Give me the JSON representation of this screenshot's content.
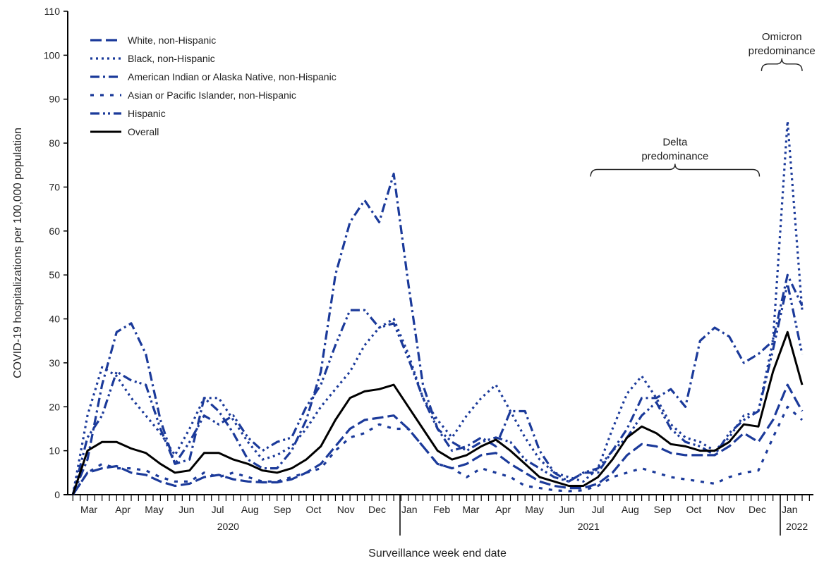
{
  "chart_data": {
    "type": "line",
    "title": "",
    "xlabel": "Surveillance week end date",
    "ylabel": "COVID-19 hospitalizations per 100,000 population",
    "ylim": [
      0,
      110
    ],
    "yticks": [
      0,
      10,
      20,
      30,
      40,
      50,
      60,
      70,
      80,
      90,
      100,
      110
    ],
    "grid": false,
    "legend_position": "top-left",
    "month_labels": [
      {
        "label": "Mar",
        "date": "2020-03"
      },
      {
        "label": "Apr",
        "date": "2020-04"
      },
      {
        "label": "May",
        "date": "2020-05"
      },
      {
        "label": "Jun",
        "date": "2020-06"
      },
      {
        "label": "Jul",
        "date": "2020-07"
      },
      {
        "label": "Aug",
        "date": "2020-08"
      },
      {
        "label": "Sep",
        "date": "2020-09"
      },
      {
        "label": "Oct",
        "date": "2020-10"
      },
      {
        "label": "Nov",
        "date": "2020-11"
      },
      {
        "label": "Dec",
        "date": "2020-12"
      },
      {
        "label": "Jan",
        "date": "2021-01"
      },
      {
        "label": "Feb",
        "date": "2021-02"
      },
      {
        "label": "Mar",
        "date": "2021-03"
      },
      {
        "label": "Apr",
        "date": "2021-04"
      },
      {
        "label": "May",
        "date": "2021-05"
      },
      {
        "label": "Jun",
        "date": "2021-06"
      },
      {
        "label": "Jul",
        "date": "2021-07"
      },
      {
        "label": "Aug",
        "date": "2021-08"
      },
      {
        "label": "Sep",
        "date": "2021-09"
      },
      {
        "label": "Oct",
        "date": "2021-10"
      },
      {
        "label": "Nov",
        "date": "2021-11"
      },
      {
        "label": "Dec",
        "date": "2021-12"
      },
      {
        "label": "Jan",
        "date": "2022-01"
      }
    ],
    "year_labels": [
      {
        "label": "2020",
        "date": "2020-07-20"
      },
      {
        "label": "2021",
        "date": "2021-07-01"
      },
      {
        "label": "2022",
        "date": "2022-01-17"
      }
    ],
    "annotations": [
      {
        "label_lines": [
          "Delta",
          "predominance"
        ],
        "start": "2021-07-03",
        "end": "2021-12-12",
        "level": 74
      },
      {
        "label_lines": [
          "Omicron",
          "predominance"
        ],
        "start": "2021-12-14",
        "end": "2022-01-22",
        "level": 98
      }
    ],
    "x": [
      "2020-02-22",
      "2020-03-07",
      "2020-03-21",
      "2020-04-04",
      "2020-04-18",
      "2020-05-02",
      "2020-05-16",
      "2020-05-30",
      "2020-06-13",
      "2020-06-27",
      "2020-07-11",
      "2020-07-25",
      "2020-08-08",
      "2020-08-22",
      "2020-09-05",
      "2020-09-19",
      "2020-10-03",
      "2020-10-17",
      "2020-10-31",
      "2020-11-14",
      "2020-11-28",
      "2020-12-12",
      "2020-12-26",
      "2021-01-09",
      "2021-01-23",
      "2021-02-06",
      "2021-02-20",
      "2021-03-06",
      "2021-03-20",
      "2021-04-03",
      "2021-04-17",
      "2021-05-01",
      "2021-05-15",
      "2021-05-29",
      "2021-06-12",
      "2021-06-26",
      "2021-07-10",
      "2021-07-24",
      "2021-08-07",
      "2021-08-21",
      "2021-09-04",
      "2021-09-18",
      "2021-10-02",
      "2021-10-16",
      "2021-10-30",
      "2021-11-13",
      "2021-11-27",
      "2021-12-11",
      "2021-12-25",
      "2022-01-08",
      "2022-01-22"
    ],
    "series": [
      {
        "name": "White, non-Hispanic",
        "color": "#1b3a9a",
        "dash": "long-dash",
        "values": [
          0,
          5,
          6,
          6.5,
          5,
          4.5,
          3,
          2,
          2.5,
          4,
          4.5,
          3.5,
          3,
          2.8,
          2.8,
          3.5,
          5,
          7,
          11,
          15,
          17,
          17.5,
          18,
          15,
          11,
          7,
          6,
          7,
          9,
          9.5,
          7,
          5,
          3,
          2,
          1.5,
          1.5,
          2.5,
          5,
          9,
          11.5,
          11,
          9.5,
          9,
          9,
          9,
          11,
          14,
          12,
          17,
          25,
          19
        ]
      },
      {
        "name": "Black, non-Hispanic",
        "color": "#1b3a9a",
        "dash": "dotted",
        "values": [
          0,
          18,
          29,
          27,
          22,
          18,
          14,
          9,
          15,
          22,
          22,
          17,
          12,
          8,
          9,
          11,
          15,
          20,
          24,
          28,
          34,
          38,
          40,
          32,
          22,
          17,
          13,
          18,
          22,
          25,
          19,
          13,
          8,
          5,
          4,
          3,
          6,
          15,
          23,
          27,
          22,
          16,
          13,
          12,
          10,
          13,
          18,
          19,
          35,
          85,
          42
        ]
      },
      {
        "name": "American Indian or Alaska Native, non-Hispanic",
        "color": "#1b3a9a",
        "dash": "dash-dot",
        "values": [
          0,
          8,
          25,
          37,
          39,
          32,
          17,
          7,
          8,
          22,
          19,
          14,
          8,
          6,
          6,
          10,
          17,
          28,
          50,
          62,
          67,
          62,
          73,
          48,
          25,
          15,
          10,
          11,
          13,
          11,
          19,
          19,
          10,
          5,
          3,
          5,
          5,
          10,
          15,
          22,
          22,
          24,
          20,
          35,
          38,
          36,
          30,
          32,
          35,
          50,
          43
        ]
      },
      {
        "name": "Asian or Pacific Islander, non-Hispanic",
        "color": "#1b3a9a",
        "dash": "short-dash",
        "values": [
          0,
          5,
          7,
          6,
          6,
          5.5,
          4,
          3,
          3,
          5,
          4,
          5,
          4,
          3,
          3,
          4,
          5,
          6,
          10,
          13,
          14,
          16,
          15,
          15,
          11,
          7,
          6,
          4,
          6,
          5,
          4,
          2,
          1.5,
          1,
          0.8,
          1,
          2,
          4,
          5,
          6,
          5,
          4,
          3.5,
          3,
          2.5,
          4,
          5,
          5.5,
          13,
          20,
          17
        ]
      },
      {
        "name": "Hispanic",
        "color": "#1b3a9a",
        "dash": "dash-dot-dot",
        "values": [
          0,
          13,
          18,
          28,
          26,
          25,
          15,
          7,
          12,
          18,
          16,
          18,
          13,
          10,
          12,
          13,
          20,
          25,
          34,
          42,
          42,
          38,
          39,
          31,
          22,
          15,
          12,
          10,
          12,
          13,
          12,
          8,
          6,
          4,
          3,
          5,
          6,
          10,
          13,
          18,
          21,
          15,
          12,
          11,
          9,
          14,
          17,
          19,
          33,
          48,
          32
        ]
      },
      {
        "name": "Overall",
        "color": "#000000",
        "dash": "solid",
        "values": [
          0,
          10,
          12,
          12,
          10.5,
          9.5,
          7,
          5,
          5.5,
          9.5,
          9.5,
          8,
          7,
          5.5,
          5,
          6,
          8,
          11,
          17,
          22,
          23.5,
          24,
          25,
          20,
          15,
          10,
          8,
          9,
          11,
          12.5,
          10,
          7,
          4,
          3,
          2,
          2,
          4,
          8,
          13,
          15.5,
          14,
          11.5,
          11,
          10,
          10,
          12,
          16,
          15.5,
          28,
          37,
          25
        ]
      }
    ]
  }
}
